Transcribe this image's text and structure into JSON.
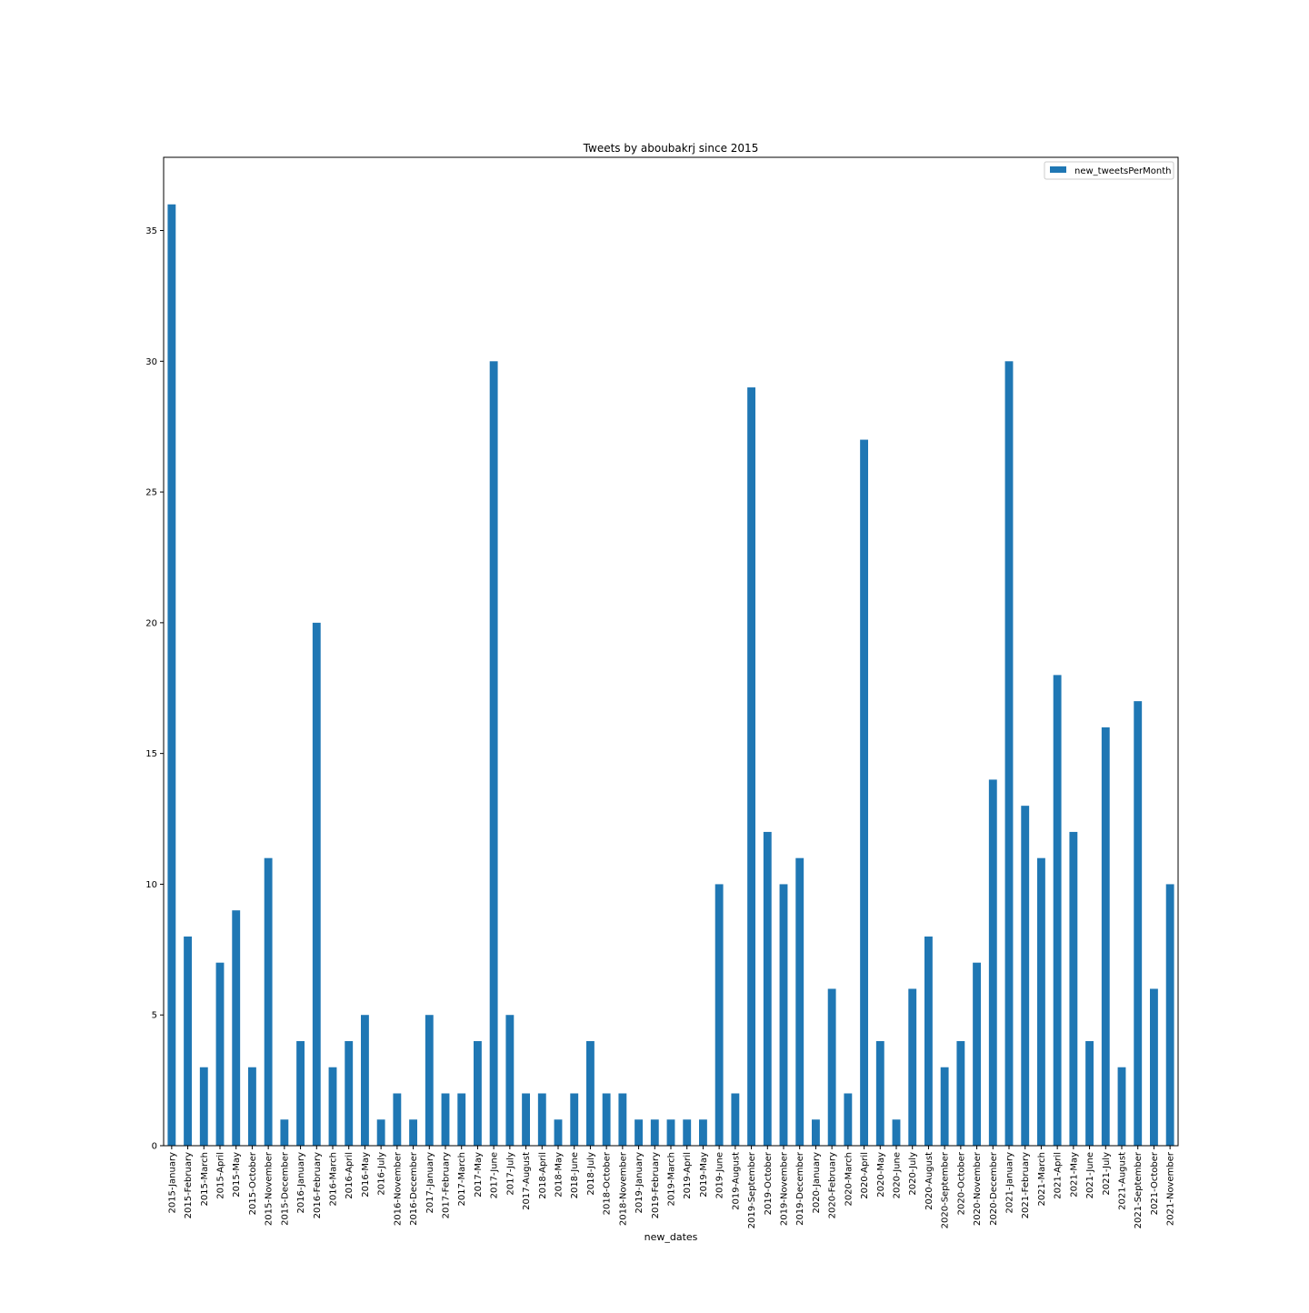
{
  "chart_data": {
    "type": "bar",
    "title": "Tweets by aboubakrj since 2015",
    "xlabel": "new_dates",
    "ylabel": "",
    "ylim": [
      0,
      37.8
    ],
    "yticks": [
      0,
      5,
      10,
      15,
      20,
      25,
      30,
      35
    ],
    "grid": false,
    "legend_position": "top-right",
    "bar_color": "#1f77b4",
    "categories": [
      "2015-January",
      "2015-February",
      "2015-March",
      "2015-April",
      "2015-May",
      "2015-October",
      "2015-November",
      "2015-December",
      "2016-January",
      "2016-February",
      "2016-March",
      "2016-April",
      "2016-May",
      "2016-July",
      "2016-November",
      "2016-December",
      "2017-January",
      "2017-February",
      "2017-March",
      "2017-May",
      "2017-June",
      "2017-July",
      "2017-August",
      "2018-April",
      "2018-May",
      "2018-June",
      "2018-July",
      "2018-October",
      "2018-November",
      "2019-January",
      "2019-February",
      "2019-March",
      "2019-April",
      "2019-May",
      "2019-June",
      "2019-August",
      "2019-September",
      "2019-October",
      "2019-November",
      "2019-December",
      "2020-January",
      "2020-February",
      "2020-March",
      "2020-April",
      "2020-May",
      "2020-June",
      "2020-July",
      "2020-August",
      "2020-September",
      "2020-October",
      "2020-November",
      "2020-December",
      "2021-January",
      "2021-February",
      "2021-March",
      "2021-April",
      "2021-May",
      "2021-June",
      "2021-July",
      "2021-August",
      "2021-September",
      "2021-October",
      "2021-November"
    ],
    "series": [
      {
        "name": "new_tweetsPerMonth",
        "values": [
          36,
          8,
          3,
          7,
          9,
          3,
          11,
          1,
          4,
          20,
          3,
          4,
          5,
          1,
          2,
          1,
          5,
          2,
          2,
          4,
          30,
          5,
          2,
          2,
          1,
          2,
          4,
          2,
          2,
          1,
          1,
          1,
          1,
          1,
          10,
          2,
          29,
          12,
          10,
          11,
          1,
          6,
          2,
          27,
          4,
          1,
          6,
          8,
          3,
          4,
          7,
          14,
          30,
          13,
          11,
          18,
          12,
          4,
          16,
          3,
          17,
          6,
          10
        ]
      }
    ]
  }
}
